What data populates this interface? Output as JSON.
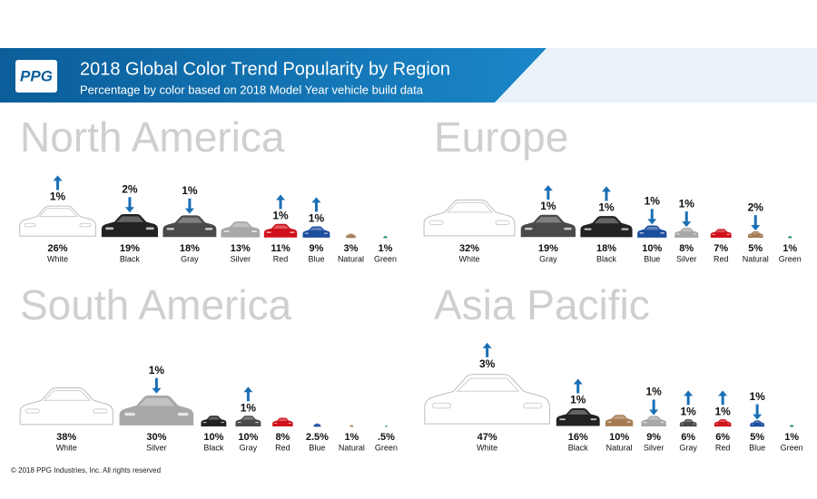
{
  "header": {
    "logo": "PPG",
    "title": "2018 Global Color Trend Popularity by Region",
    "subtitle": "Percentage by color based on 2018 Model Year vehicle build data"
  },
  "copyright": "© 2018 PPG Industries, Inc. All rights reserved",
  "chart_data": [
    {
      "type": "pictogram",
      "title": "North America",
      "categories": [
        "White",
        "Black",
        "Gray",
        "Silver",
        "Red",
        "Blue",
        "Natural",
        "Green"
      ],
      "values": [
        26,
        19,
        18,
        13,
        11,
        9,
        3,
        1
      ],
      "value_labels": [
        "26%",
        "19%",
        "18%",
        "13%",
        "11%",
        "9%",
        "3%",
        "1%"
      ],
      "colors": [
        "#ffffff",
        "#222222",
        "#4a4a4a",
        "#a8a8a8",
        "#d0111b",
        "#1d4e9e",
        "#a57c52",
        "#1a8a5a"
      ],
      "change_labels": [
        "1%",
        "2%",
        "1%",
        null,
        "1%",
        "1%",
        null,
        null
      ],
      "change_directions": [
        "up",
        "down",
        "down",
        null,
        "up",
        "up",
        null,
        null
      ]
    },
    {
      "type": "pictogram",
      "title": "Europe",
      "categories": [
        "White",
        "Gray",
        "Black",
        "Blue",
        "Silver",
        "Red",
        "Natural",
        "Green"
      ],
      "values": [
        32,
        19,
        18,
        10,
        8,
        7,
        5,
        1
      ],
      "value_labels": [
        "32%",
        "19%",
        "18%",
        "10%",
        "8%",
        "7%",
        "5%",
        "1%"
      ],
      "colors": [
        "#ffffff",
        "#4a4a4a",
        "#222222",
        "#1d4e9e",
        "#a8a8a8",
        "#d0111b",
        "#a57c52",
        "#1a8a5a"
      ],
      "change_labels": [
        null,
        "1%",
        "1%",
        "1%",
        "1%",
        null,
        "2%",
        null
      ],
      "change_directions": [
        null,
        "up",
        "up",
        "down",
        "down",
        null,
        "down",
        null
      ]
    },
    {
      "type": "pictogram",
      "title": "South America",
      "categories": [
        "White",
        "Silver",
        "Black",
        "Gray",
        "Red",
        "Blue",
        "Natural",
        "Green"
      ],
      "values": [
        38,
        30,
        10,
        10,
        8,
        2.5,
        1,
        0.5
      ],
      "value_labels": [
        "38%",
        "30%",
        "10%",
        "10%",
        "8%",
        "2.5%",
        "1%",
        ".5%"
      ],
      "colors": [
        "#ffffff",
        "#a8a8a8",
        "#222222",
        "#4a4a4a",
        "#d0111b",
        "#1d4e9e",
        "#a57c52",
        "#1a8a5a"
      ],
      "change_labels": [
        null,
        "1%",
        null,
        "1%",
        null,
        null,
        null,
        null
      ],
      "change_directions": [
        null,
        "down",
        null,
        "up",
        null,
        null,
        null,
        null
      ]
    },
    {
      "type": "pictogram",
      "title": "Asia Pacific",
      "categories": [
        "White",
        "Black",
        "Natural",
        "Silver",
        "Gray",
        "Red",
        "Blue",
        "Green"
      ],
      "values": [
        47,
        16,
        10,
        9,
        6,
        6,
        5,
        1
      ],
      "value_labels": [
        "47%",
        "16%",
        "10%",
        "9%",
        "6%",
        "6%",
        "5%",
        "1%"
      ],
      "colors": [
        "#ffffff",
        "#222222",
        "#a57c52",
        "#a8a8a8",
        "#4a4a4a",
        "#d0111b",
        "#1d4e9e",
        "#1a8a5a"
      ],
      "change_labels": [
        "3%",
        "1%",
        null,
        "1%",
        "1%",
        "1%",
        "1%",
        null
      ],
      "change_directions": [
        "up",
        "up",
        null,
        "down",
        "up",
        "up",
        "down",
        null
      ]
    }
  ]
}
